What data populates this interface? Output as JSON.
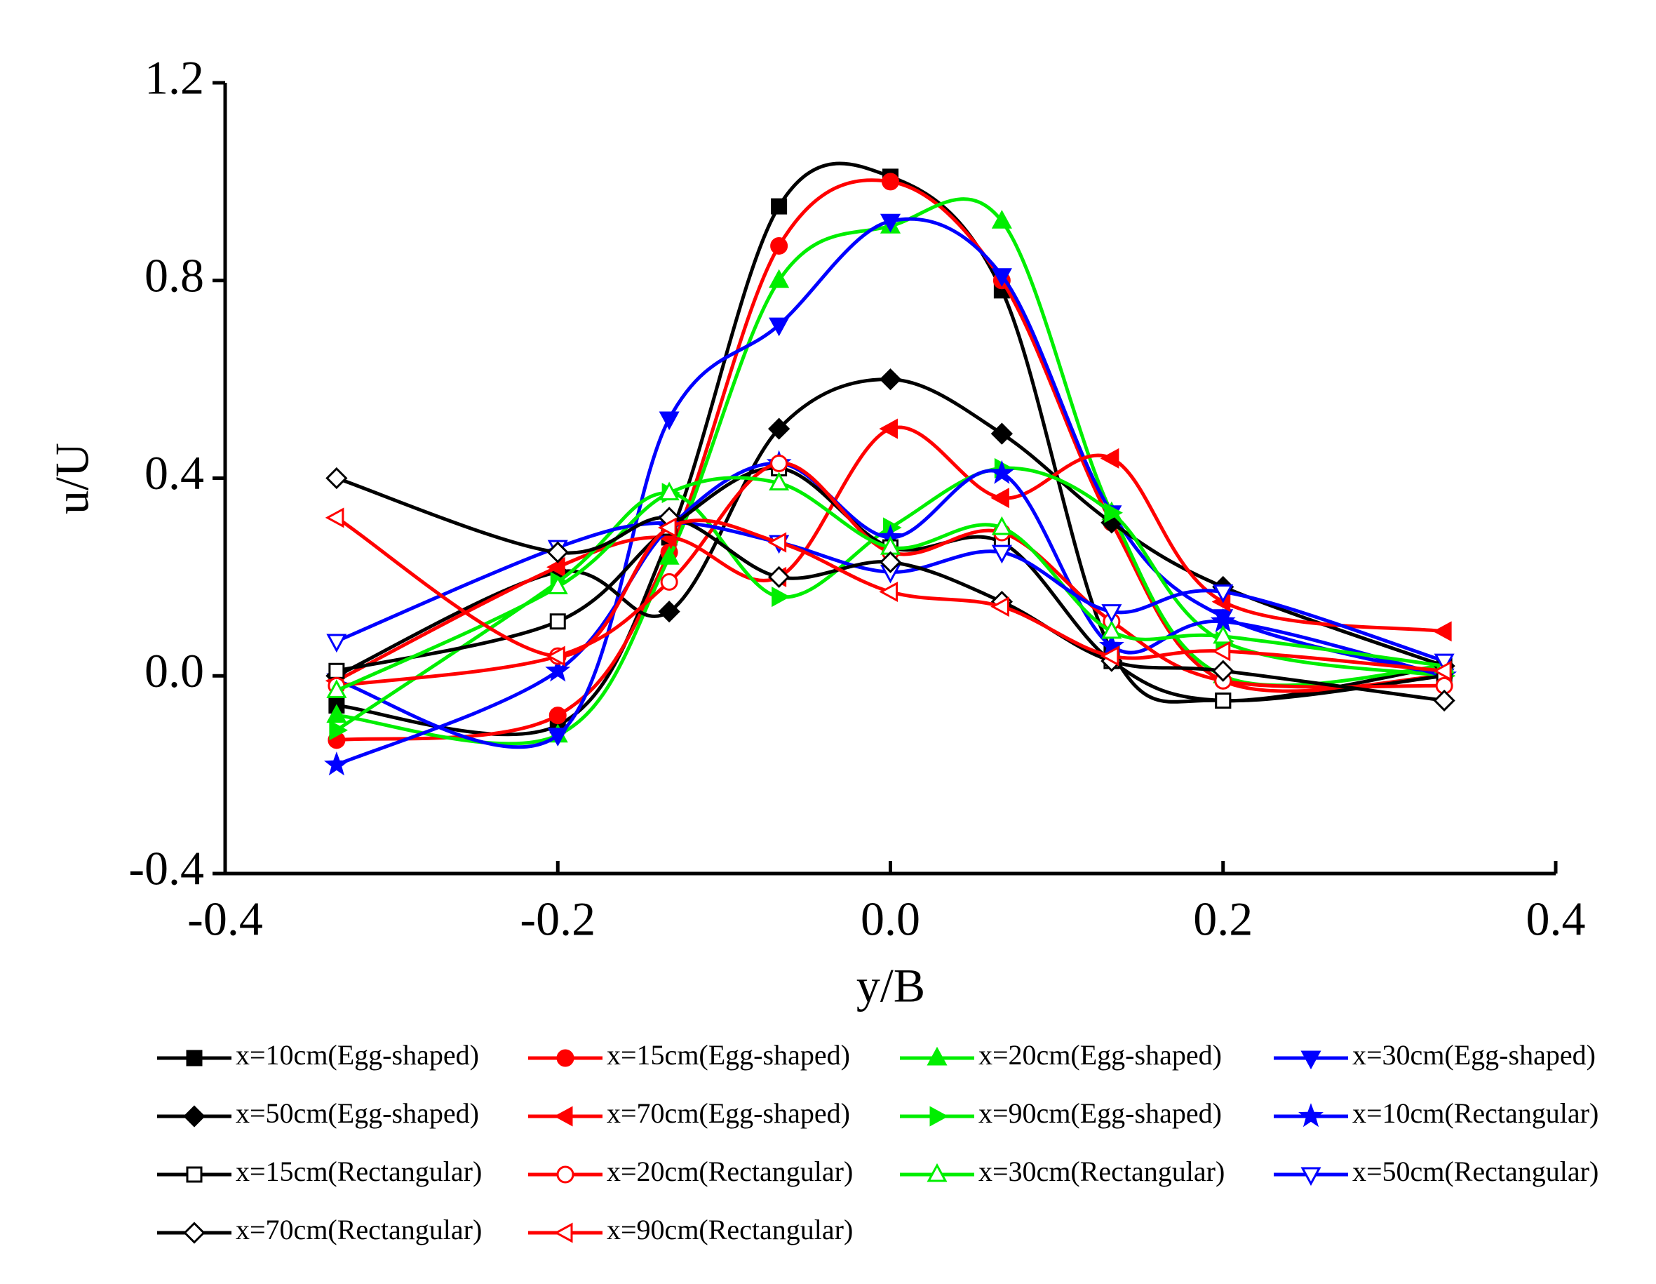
{
  "chart_data": {
    "type": "line",
    "xlabel": "y/B",
    "ylabel": "u/U",
    "x": [
      -0.333,
      -0.2,
      -0.133,
      -0.067,
      0,
      0.067,
      0.133,
      0.2,
      0.333
    ],
    "xlim": [
      -0.4,
      0.4
    ],
    "xticks": [
      {
        "value": -0.4,
        "label": "-0.4"
      },
      {
        "value": -0.2,
        "label": "-0.2"
      },
      {
        "value": 0,
        "label": "0.0"
      },
      {
        "value": 0.2,
        "label": "0.2"
      },
      {
        "value": 0.4,
        "label": "0.4"
      }
    ],
    "ylim": [
      -0.4,
      1.2
    ],
    "yticks": [
      {
        "value": -0.4,
        "label": "-0.4"
      },
      {
        "value": 0,
        "label": "0.0"
      },
      {
        "value": 0.4,
        "label": "0.4"
      },
      {
        "value": 0.8,
        "label": "0.8"
      },
      {
        "value": 1.2,
        "label": "1.2"
      }
    ],
    "smooth": true,
    "series": [
      {
        "name": "x=10cm(Egg-shaped)",
        "color": "#000000",
        "marker": "square",
        "filled": true,
        "values": [
          -0.06,
          -0.1,
          0.28,
          0.95,
          1.01,
          0.78,
          0.05,
          -0.05,
          0.02
        ]
      },
      {
        "name": "x=15cm(Egg-shaped)",
        "color": "#ff0000",
        "marker": "circle",
        "filled": true,
        "values": [
          -0.13,
          -0.08,
          0.25,
          0.87,
          1.0,
          0.8,
          0.31,
          -0.01,
          0.0
        ]
      },
      {
        "name": "x=20cm(Egg-shaped)",
        "color": "#00ee00",
        "marker": "up",
        "filled": true,
        "values": [
          -0.08,
          -0.12,
          0.24,
          0.8,
          0.91,
          0.92,
          0.33,
          0.0,
          0.02
        ]
      },
      {
        "name": "x=30cm(Egg-shaped)",
        "color": "#0000ff",
        "marker": "down",
        "filled": true,
        "values": [
          -0.01,
          -0.12,
          0.52,
          0.71,
          0.92,
          0.81,
          0.33,
          0.12,
          0.0
        ]
      },
      {
        "name": "x=50cm(Egg-shaped)",
        "color": "#000000",
        "marker": "diamond",
        "filled": true,
        "values": [
          0.0,
          0.21,
          0.13,
          0.5,
          0.6,
          0.49,
          0.31,
          0.18,
          0.02
        ]
      },
      {
        "name": "x=70cm(Egg-shaped)",
        "color": "#ff0000",
        "marker": "left",
        "filled": true,
        "values": [
          -0.01,
          0.22,
          0.28,
          0.2,
          0.5,
          0.36,
          0.44,
          0.15,
          0.09
        ]
      },
      {
        "name": "x=90cm(Egg-shaped)",
        "color": "#00ee00",
        "marker": "right",
        "filled": true,
        "values": [
          -0.11,
          0.19,
          0.37,
          0.16,
          0.3,
          0.42,
          0.33,
          0.07,
          0.0
        ]
      },
      {
        "name": "x=10cm(Rectangular)",
        "color": "#0000ff",
        "marker": "star",
        "filled": true,
        "values": [
          -0.18,
          0.01,
          0.3,
          0.43,
          0.28,
          0.41,
          0.06,
          0.11,
          0.0
        ]
      },
      {
        "name": "x=15cm(Rectangular)",
        "color": "#000000",
        "marker": "square",
        "filled": false,
        "values": [
          0.01,
          0.11,
          0.3,
          0.42,
          0.26,
          0.27,
          0.03,
          -0.05,
          0.0
        ]
      },
      {
        "name": "x=20cm(Rectangular)",
        "color": "#ff0000",
        "marker": "circle",
        "filled": false,
        "values": [
          -0.02,
          0.04,
          0.19,
          0.43,
          0.25,
          0.29,
          0.11,
          -0.01,
          -0.02
        ]
      },
      {
        "name": "x=30cm(Rectangular)",
        "color": "#00ee00",
        "marker": "up",
        "filled": false,
        "values": [
          -0.03,
          0.18,
          0.37,
          0.39,
          0.26,
          0.3,
          0.09,
          0.08,
          0.02
        ]
      },
      {
        "name": "x=50cm(Rectangular)",
        "color": "#0000ff",
        "marker": "down",
        "filled": false,
        "values": [
          0.07,
          0.26,
          0.31,
          0.27,
          0.21,
          0.25,
          0.13,
          0.17,
          0.03
        ]
      },
      {
        "name": "x=70cm(Rectangular)",
        "color": "#000000",
        "marker": "diamond",
        "filled": false,
        "values": [
          0.4,
          0.25,
          0.32,
          0.2,
          0.23,
          0.15,
          0.03,
          0.01,
          -0.05
        ]
      },
      {
        "name": "x=90cm(Rectangular)",
        "color": "#ff0000",
        "marker": "left",
        "filled": false,
        "values": [
          0.32,
          0.04,
          0.3,
          0.27,
          0.17,
          0.14,
          0.04,
          0.05,
          0.01
        ]
      }
    ]
  }
}
